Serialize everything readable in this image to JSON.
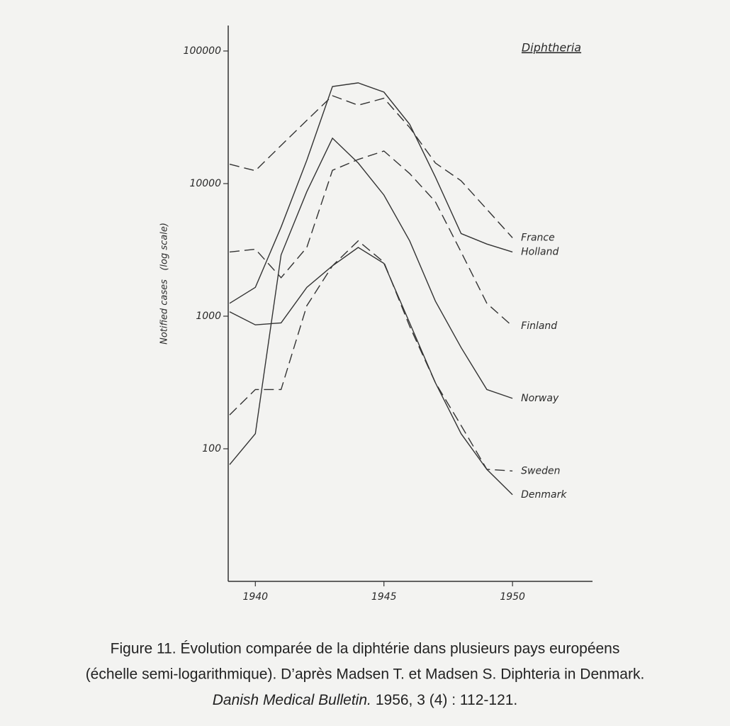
{
  "chart_data": {
    "type": "line",
    "title": "Diphtheria",
    "y_label": "Notified cases   (log scale)",
    "log_y": true,
    "x": [
      1939,
      1940,
      1941,
      1942,
      1943,
      1944,
      1945,
      1946,
      1947,
      1948,
      1949,
      1950
    ],
    "xlim": [
      1939,
      1953
    ],
    "xticks": [
      1940,
      1945,
      1950
    ],
    "ylim": [
      10,
      150000
    ],
    "yticks": [
      100,
      1000,
      10000,
      100000
    ],
    "series": [
      {
        "name": "France",
        "color": "#333333",
        "dashed": true,
        "values": [
          14000,
          12500,
          19400,
          30000,
          46000,
          39000,
          44000,
          26500,
          14300,
          10500,
          6400,
          3900
        ]
      },
      {
        "name": "Holland",
        "color": "#333333",
        "dashed": false,
        "values": [
          1250,
          1650,
          4700,
          15000,
          54000,
          57500,
          49000,
          28000,
          11200,
          4200,
          3500,
          3050
        ]
      },
      {
        "name": "Finland",
        "color": "#333333",
        "dashed": true,
        "values": [
          3050,
          3200,
          1950,
          3300,
          12600,
          15200,
          17600,
          11900,
          7300,
          3050,
          1250,
          840
        ]
      },
      {
        "name": "Norway",
        "color": "#333333",
        "dashed": false,
        "values": [
          76,
          130,
          2900,
          8700,
          22000,
          14300,
          8200,
          3700,
          1300,
          580,
          280,
          240
        ]
      },
      {
        "name": "Sweden",
        "color": "#333333",
        "dashed": true,
        "values": [
          180,
          280,
          280,
          1200,
          2400,
          3700,
          2550,
          840,
          315,
          150,
          70,
          68
        ]
      },
      {
        "name": "Denmark",
        "color": "#333333",
        "dashed": false,
        "values": [
          1080,
          860,
          890,
          1650,
          2400,
          3300,
          2500,
          890,
          315,
          130,
          70,
          45
        ]
      }
    ],
    "caption": {
      "lines": [
        "Figure 11. Évolution comparée de la diphtérie dans plusieurs pays européens",
        "(échelle semi-logarithmique). D’après Madsen T. et Madsen S. Diphteria in Denmark."
      ],
      "journal": "Danish Medical Bulletin.",
      "reference": "1956, 3 (4) : 112-121."
    }
  }
}
